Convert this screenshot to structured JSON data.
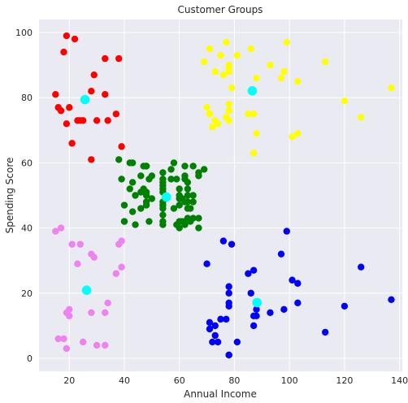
{
  "chart_data": {
    "type": "scatter",
    "title": "Customer Groups",
    "xlabel": "Annual Income",
    "ylabel": "Spending Score",
    "xlim": [
      9,
      141
    ],
    "ylim": [
      -4,
      104
    ],
    "xticks": [
      20,
      40,
      60,
      80,
      100,
      120,
      140
    ],
    "yticks": [
      0,
      20,
      40,
      60,
      80,
      100
    ],
    "grid": true,
    "background_color": "#eaeaf2",
    "grid_color": "#ffffff",
    "centroid_color": "#00ffff",
    "series": [
      {
        "color": "#ff0000",
        "points": [
          [
            15,
            81
          ],
          [
            16,
            77
          ],
          [
            17,
            76
          ],
          [
            18,
            94
          ],
          [
            19,
            99
          ],
          [
            19,
            72
          ],
          [
            20,
            77
          ],
          [
            21,
            66
          ],
          [
            22,
            98
          ],
          [
            23,
            73
          ],
          [
            24,
            73
          ],
          [
            25,
            73
          ],
          [
            28,
            82
          ],
          [
            28,
            61
          ],
          [
            29,
            87
          ],
          [
            30,
            73
          ],
          [
            33,
            81
          ],
          [
            33,
            92
          ],
          [
            34,
            73
          ],
          [
            37,
            75
          ],
          [
            38,
            92
          ],
          [
            39,
            65
          ]
        ],
        "centroid": [
          25.7,
          79.4
        ]
      },
      {
        "color": "#ffff00",
        "points": [
          [
            69,
            91
          ],
          [
            70,
            77
          ],
          [
            71,
            95
          ],
          [
            71,
            75
          ],
          [
            71,
            75
          ],
          [
            72,
            71
          ],
          [
            73,
            73
          ],
          [
            73,
            88
          ],
          [
            74,
            72
          ],
          [
            75,
            93
          ],
          [
            76,
            87
          ],
          [
            77,
            97
          ],
          [
            77,
            74
          ],
          [
            78,
            90
          ],
          [
            78,
            88
          ],
          [
            78,
            76
          ],
          [
            78,
            89
          ],
          [
            78,
            78
          ],
          [
            78,
            73
          ],
          [
            79,
            83
          ],
          [
            81,
            93
          ],
          [
            85,
            75
          ],
          [
            86,
            95
          ],
          [
            87,
            63
          ],
          [
            87,
            75
          ],
          [
            88,
            69
          ],
          [
            88,
            86
          ],
          [
            93,
            90
          ],
          [
            97,
            86
          ],
          [
            98,
            88
          ],
          [
            99,
            97
          ],
          [
            101,
            68
          ],
          [
            103,
            69
          ],
          [
            103,
            85
          ],
          [
            113,
            91
          ],
          [
            120,
            79
          ],
          [
            126,
            74
          ],
          [
            137,
            83
          ]
        ],
        "centroid": [
          86.5,
          82.1
        ]
      },
      {
        "color": "#008000",
        "points": [
          [
            38,
            61
          ],
          [
            39,
            55
          ],
          [
            40,
            47
          ],
          [
            40,
            42
          ],
          [
            40,
            42
          ],
          [
            42,
            52
          ],
          [
            42,
            60
          ],
          [
            43,
            54
          ],
          [
            43,
            60
          ],
          [
            43,
            45
          ],
          [
            44,
            41
          ],
          [
            44,
            50
          ],
          [
            46,
            46
          ],
          [
            46,
            51
          ],
          [
            46,
            56
          ],
          [
            47,
            52
          ],
          [
            47,
            59
          ],
          [
            48,
            51
          ],
          [
            48,
            59
          ],
          [
            48,
            50
          ],
          [
            48,
            48
          ],
          [
            48,
            59
          ],
          [
            48,
            47
          ],
          [
            49,
            55
          ],
          [
            49,
            42
          ],
          [
            50,
            49
          ],
          [
            50,
            56
          ],
          [
            54,
            47
          ],
          [
            54,
            54
          ],
          [
            54,
            53
          ],
          [
            54,
            48
          ],
          [
            54,
            52
          ],
          [
            54,
            42
          ],
          [
            54,
            51
          ],
          [
            54,
            55
          ],
          [
            54,
            41
          ],
          [
            54,
            44
          ],
          [
            54,
            57
          ],
          [
            54,
            46
          ],
          [
            57,
            58
          ],
          [
            57,
            55
          ],
          [
            58,
            60
          ],
          [
            58,
            46
          ],
          [
            59,
            55
          ],
          [
            59,
            41
          ],
          [
            60,
            49
          ],
          [
            60,
            40
          ],
          [
            60,
            42
          ],
          [
            60,
            52
          ],
          [
            60,
            47
          ],
          [
            60,
            50
          ],
          [
            61,
            42
          ],
          [
            61,
            49
          ],
          [
            62,
            41
          ],
          [
            62,
            48
          ],
          [
            62,
            59
          ],
          [
            62,
            55
          ],
          [
            62,
            56
          ],
          [
            62,
            42
          ],
          [
            63,
            50
          ],
          [
            63,
            46
          ],
          [
            63,
            43
          ],
          [
            63,
            48
          ],
          [
            63,
            52
          ],
          [
            63,
            54
          ],
          [
            64,
            42
          ],
          [
            64,
            46
          ],
          [
            65,
            48
          ],
          [
            65,
            50
          ],
          [
            65,
            43
          ],
          [
            65,
            59
          ],
          [
            67,
            43
          ],
          [
            67,
            57
          ],
          [
            67,
            56
          ],
          [
            67,
            40
          ],
          [
            69,
            58
          ]
        ],
        "centroid": [
          55.3,
          49.5
        ]
      },
      {
        "color": "#ee82ee",
        "points": [
          [
            15,
            39
          ],
          [
            16,
            6
          ],
          [
            17,
            40
          ],
          [
            18,
            6
          ],
          [
            19,
            3
          ],
          [
            19,
            14
          ],
          [
            20,
            15
          ],
          [
            20,
            13
          ],
          [
            21,
            35
          ],
          [
            23,
            29
          ],
          [
            24,
            35
          ],
          [
            25,
            5
          ],
          [
            28,
            14
          ],
          [
            28,
            32
          ],
          [
            29,
            31
          ],
          [
            30,
            4
          ],
          [
            33,
            4
          ],
          [
            33,
            14
          ],
          [
            34,
            17
          ],
          [
            37,
            26
          ],
          [
            38,
            35
          ],
          [
            39,
            36
          ],
          [
            39,
            28
          ]
        ],
        "centroid": [
          26.3,
          20.9
        ]
      },
      {
        "color": "#0000ff",
        "points": [
          [
            70,
            29
          ],
          [
            71,
            11
          ],
          [
            71,
            9
          ],
          [
            72,
            5
          ],
          [
            73,
            7
          ],
          [
            73,
            10
          ],
          [
            74,
            5
          ],
          [
            75,
            12
          ],
          [
            76,
            36
          ],
          [
            77,
            12
          ],
          [
            78,
            22
          ],
          [
            78,
            17
          ],
          [
            78,
            20
          ],
          [
            78,
            16
          ],
          [
            78,
            1
          ],
          [
            78,
            1
          ],
          [
            79,
            35
          ],
          [
            81,
            5
          ],
          [
            85,
            26
          ],
          [
            86,
            20
          ],
          [
            87,
            27
          ],
          [
            87,
            13
          ],
          [
            87,
            10
          ],
          [
            88,
            13
          ],
          [
            88,
            15
          ],
          [
            93,
            14
          ],
          [
            97,
            32
          ],
          [
            98,
            15
          ],
          [
            99,
            39
          ],
          [
            101,
            24
          ],
          [
            103,
            17
          ],
          [
            103,
            23
          ],
          [
            113,
            8
          ],
          [
            120,
            16
          ],
          [
            126,
            28
          ],
          [
            137,
            18
          ]
        ],
        "centroid": [
          88.2,
          17.1
        ]
      }
    ]
  }
}
